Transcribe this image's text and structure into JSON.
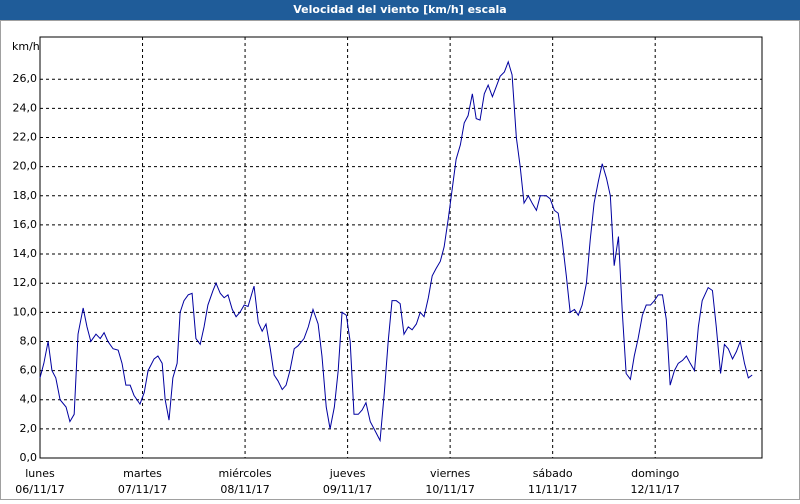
{
  "chart_data": {
    "type": "line",
    "title": "Velocidad del viento [km/h] escala",
    "y_unit": "km/h",
    "xlim": [
      0,
      169
    ],
    "ylim": [
      0,
      28.9
    ],
    "xticks": [
      {
        "value": 0,
        "label": "lunes",
        "date": "06/11/17"
      },
      {
        "value": 24,
        "label": "martes",
        "date": "07/11/17"
      },
      {
        "value": 48,
        "label": "miércoles",
        "date": "08/11/17"
      },
      {
        "value": 72,
        "label": "jueves",
        "date": "09/11/17"
      },
      {
        "value": 96,
        "label": "viernes",
        "date": "10/11/17"
      },
      {
        "value": 120,
        "label": "sábado",
        "date": "11/11/17"
      },
      {
        "value": 144,
        "label": "domingo",
        "date": "12/11/17"
      }
    ],
    "yticks": [
      {
        "value": 0,
        "label": "0,0"
      },
      {
        "value": 2,
        "label": "2,0"
      },
      {
        "value": 4,
        "label": "4,0"
      },
      {
        "value": 6,
        "label": "6,0"
      },
      {
        "value": 8,
        "label": "8,0"
      },
      {
        "value": 10,
        "label": "10,0"
      },
      {
        "value": 12,
        "label": "12,0"
      },
      {
        "value": 14,
        "label": "14,0"
      },
      {
        "value": 16,
        "label": "16,0"
      },
      {
        "value": 18,
        "label": "18,0"
      },
      {
        "value": 20,
        "label": "20,0"
      },
      {
        "value": 22,
        "label": "22,0"
      },
      {
        "value": 24,
        "label": "24,0"
      },
      {
        "value": 26,
        "label": "26,0"
      }
    ],
    "grid": true,
    "series": [
      {
        "color": "#0000a0",
        "x": [
          0,
          0.9,
          1.9,
          2.8,
          3.7,
          4.7,
          6.1,
          7.0,
          8.0,
          8.9,
          10.1,
          11.0,
          11.9,
          13.1,
          14.1,
          15.0,
          15.9,
          17.1,
          18.3,
          19.2,
          20.1,
          21.1,
          22.0,
          23.4,
          24.4,
          25.3,
          26.7,
          27.6,
          28.6,
          29.3,
          30.2,
          31.1,
          32.1,
          32.8,
          33.7,
          34.7,
          35.6,
          36.5,
          37.5,
          38.4,
          39.3,
          40.5,
          41.2,
          42.2,
          43.1,
          44.0,
          45.0,
          45.9,
          46.8,
          47.8,
          48.7,
          50.1,
          51.1,
          52.0,
          52.9,
          53.9,
          54.8,
          55.7,
          56.7,
          57.6,
          58.5,
          59.5,
          60.4,
          61.8,
          62.8,
          63.9,
          65.1,
          66.0,
          67.0,
          67.9,
          68.9,
          69.8,
          70.7,
          71.7,
          72.6,
          73.5,
          74.5,
          75.4,
          76.3,
          77.3,
          78.2,
          79.6,
          80.6,
          81.5,
          82.4,
          83.4,
          84.3,
          85.2,
          86.2,
          87.1,
          88.1,
          89.0,
          89.9,
          90.9,
          91.8,
          92.7,
          93.7,
          94.6,
          95.6,
          96.5,
          97.4,
          98.4,
          99.3,
          100.2,
          101.2,
          102.1,
          103.0,
          104.0,
          104.9,
          105.9,
          106.8,
          107.7,
          108.7,
          109.6,
          110.5,
          111.5,
          112.4,
          113.3,
          114.3,
          115.2,
          116.2,
          117.1,
          118.5,
          119.4,
          120.4,
          121.3,
          122.2,
          123.2,
          124.1,
          125.1,
          126.0,
          126.9,
          127.9,
          128.8,
          129.7,
          130.7,
          131.6,
          132.6,
          133.5,
          134.4,
          135.4,
          136.3,
          137.2,
          138.2,
          139.1,
          140.0,
          141.0,
          141.9,
          142.9,
          143.8,
          144.7,
          145.7,
          146.6,
          147.5,
          148.5,
          149.4,
          150.4,
          151.3,
          152.2,
          153.2,
          154.1,
          155.0,
          156.4,
          157.4,
          158.3,
          159.3,
          160.2,
          161.1,
          162.1,
          163.0,
          163.9,
          164.9,
          165.8,
          166.7
        ],
        "values": [
          5.5,
          6.5,
          8.0,
          6.0,
          5.5,
          4.0,
          3.5,
          2.5,
          3.0,
          8.5,
          10.3,
          9.0,
          8.0,
          8.5,
          8.2,
          8.6,
          8.0,
          7.5,
          7.4,
          6.5,
          5.0,
          5.0,
          4.3,
          3.7,
          4.5,
          6.0,
          6.8,
          7.0,
          6.5,
          4.0,
          2.6,
          5.5,
          6.5,
          10.0,
          10.8,
          11.2,
          11.3,
          8.2,
          7.8,
          9.0,
          10.5,
          11.5,
          12.0,
          11.3,
          11.0,
          11.2,
          10.2,
          9.7,
          10.0,
          10.5,
          10.4,
          11.8,
          9.3,
          8.7,
          9.2,
          7.5,
          5.7,
          5.3,
          4.7,
          5.0,
          6.0,
          7.5,
          7.7,
          8.2,
          9.0,
          10.2,
          9.2,
          7.0,
          3.5,
          2.0,
          3.5,
          6.0,
          10.0,
          9.8,
          8.0,
          3.0,
          3.0,
          3.3,
          3.8,
          2.5,
          2.0,
          1.2,
          4.5,
          8.0,
          10.8,
          10.8,
          10.6,
          8.5,
          9.0,
          8.8,
          9.2,
          10.0,
          9.7,
          11.0,
          12.5,
          13.0,
          13.5,
          14.5,
          16.5,
          18.5,
          20.5,
          21.5,
          23.0,
          23.5,
          25.0,
          23.3,
          23.2,
          25.0,
          25.6,
          24.8,
          25.5,
          26.2,
          26.5,
          27.2,
          26.3,
          22.0,
          20.0,
          17.5,
          18.0,
          17.5,
          17.0,
          18.0,
          18.0,
          17.8,
          17.0,
          16.8,
          15.0,
          12.5,
          10.0,
          10.2,
          9.8,
          10.5,
          12.0,
          15.0,
          17.5,
          19.0,
          20.2,
          19.2,
          18.0,
          13.2,
          15.2,
          10.0,
          5.8,
          5.4,
          7.0,
          8.2,
          9.8,
          10.5,
          10.5,
          10.8,
          11.2,
          11.2,
          9.5,
          5.0,
          6.0,
          6.5,
          6.7,
          7.0,
          6.5,
          6.0,
          9.0,
          10.8,
          11.7,
          11.5,
          9.0,
          5.8,
          7.8,
          7.5,
          6.8,
          7.3,
          8.0,
          6.5,
          5.5,
          5.7
        ]
      }
    ]
  }
}
